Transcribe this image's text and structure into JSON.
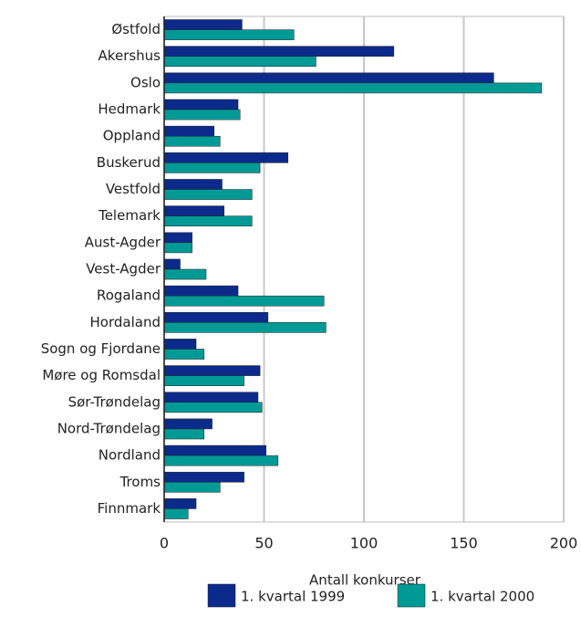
{
  "chart_data": {
    "type": "barh",
    "x_label": "Antall konkurser",
    "categories": [
      "Østfold",
      "Akershus",
      "Oslo",
      "Hedmark",
      "Oppland",
      "Buskerud",
      "Vestfold",
      "Telemark",
      "Aust-Agder",
      "Vest-Agder",
      "Rogaland",
      "Hordaland",
      "Sogn og Fjordane",
      "Møre og Romsdal",
      "Sør-Trøndelag",
      "Nord-Trøndelag",
      "Nordland",
      "Troms",
      "Finnmark"
    ],
    "series": [
      {
        "name": "1. kvartal 1999",
        "color": "#0b2a8c",
        "values": [
          39,
          115,
          165,
          37,
          25,
          62,
          29,
          30,
          14,
          8,
          37,
          52,
          16,
          48,
          47,
          24,
          51,
          40,
          16
        ]
      },
      {
        "name": "1. kvartal 2000",
        "color": "#009a96",
        "values": [
          65,
          76,
          189,
          38,
          28,
          48,
          44,
          44,
          14,
          21,
          80,
          81,
          20,
          40,
          49,
          20,
          57,
          28,
          12
        ]
      }
    ],
    "xlim": [
      0,
      200
    ],
    "xticks": [
      0,
      50,
      100,
      150,
      200
    ],
    "grid": true
  }
}
